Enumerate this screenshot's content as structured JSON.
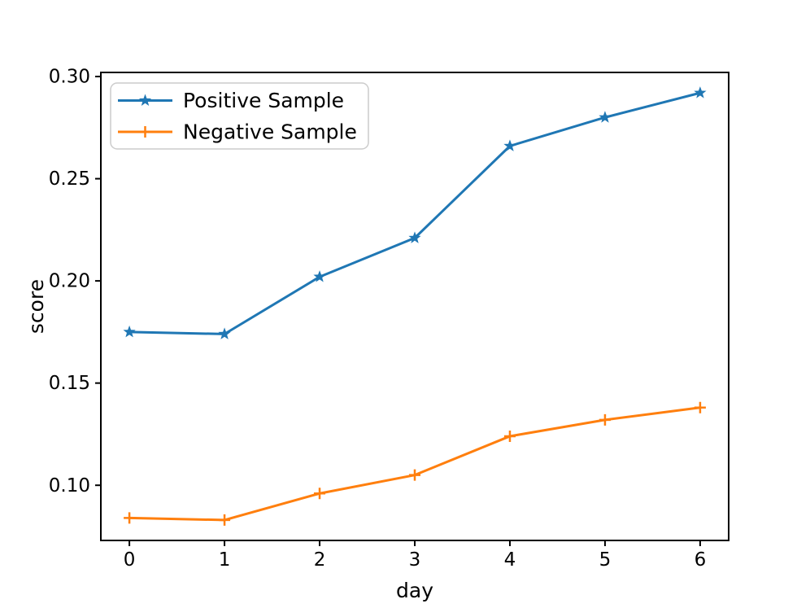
{
  "chart_data": {
    "type": "line",
    "x": [
      0,
      1,
      2,
      3,
      4,
      5,
      6
    ],
    "series": [
      {
        "name": "Positive Sample",
        "color": "#1f77b4",
        "marker": "star",
        "values": [
          0.175,
          0.174,
          0.202,
          0.221,
          0.266,
          0.28,
          0.292
        ]
      },
      {
        "name": "Negative Sample",
        "color": "#ff7f0e",
        "marker": "plus",
        "values": [
          0.084,
          0.083,
          0.096,
          0.105,
          0.124,
          0.132,
          0.138
        ]
      }
    ],
    "title": "",
    "xlabel": "day",
    "ylabel": "score",
    "xticks": [
      0,
      1,
      2,
      3,
      4,
      5,
      6
    ],
    "yticks": [
      0.1,
      0.15,
      0.2,
      0.25,
      0.3
    ],
    "xlim": [
      -0.3,
      6.3
    ],
    "ylim": [
      0.073,
      0.302
    ],
    "grid": false,
    "legend": {
      "position": "upper left",
      "entries": [
        "Positive Sample",
        "Negative Sample"
      ]
    },
    "colors": {
      "axes": "#000000",
      "background": "#ffffff",
      "legend_border": "#cccccc"
    }
  }
}
